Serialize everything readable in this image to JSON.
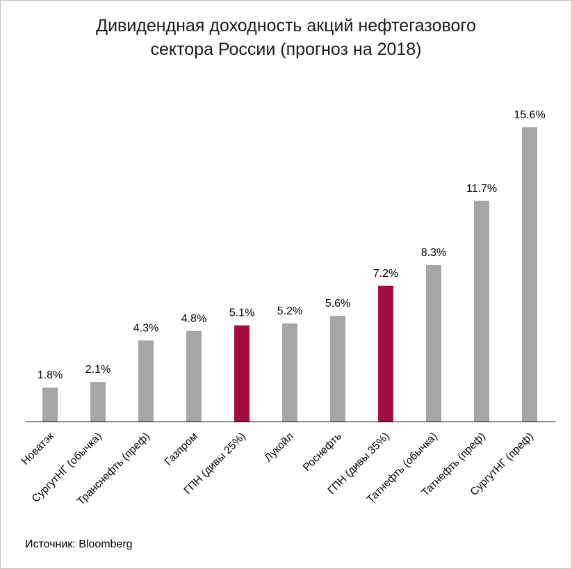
{
  "title": {
    "line1": "Дивидендная доходность акций нефтегазового",
    "line2": "сектора России (прогноз на 2018)"
  },
  "source": "Источник: Bloomberg",
  "colors": {
    "default": "#a6a6a6",
    "highlight": "#a50d45",
    "axis": "#000000"
  },
  "chart_data": {
    "type": "bar",
    "title": "Дивидендная доходность акций нефтегазового сектора России (прогноз на 2018)",
    "categories": [
      "Новатэк",
      "СургутНГ (обычка)",
      "Транснефть (преф)",
      "Газпром",
      "ГПН (дивы 25%)",
      "Лукойл",
      "Роснефть",
      "ГПН (дивы 35%)",
      "Татнефть (обычка)",
      "Татнефть (преф)",
      "СургутНГ (преф)"
    ],
    "values": [
      1.8,
      2.1,
      4.3,
      4.8,
      5.1,
      5.2,
      5.6,
      7.2,
      8.3,
      11.7,
      15.6
    ],
    "value_labels": [
      "1.8%",
      "2.1%",
      "4.3%",
      "4.8%",
      "5.1%",
      "5.2%",
      "5.6%",
      "7.2%",
      "8.3%",
      "11.7%",
      "15.6%"
    ],
    "highlight": [
      false,
      false,
      false,
      false,
      true,
      false,
      false,
      true,
      false,
      false,
      false
    ],
    "unit": "%",
    "ylim": [
      0,
      15.6
    ],
    "grid": false,
    "legend": "none"
  }
}
